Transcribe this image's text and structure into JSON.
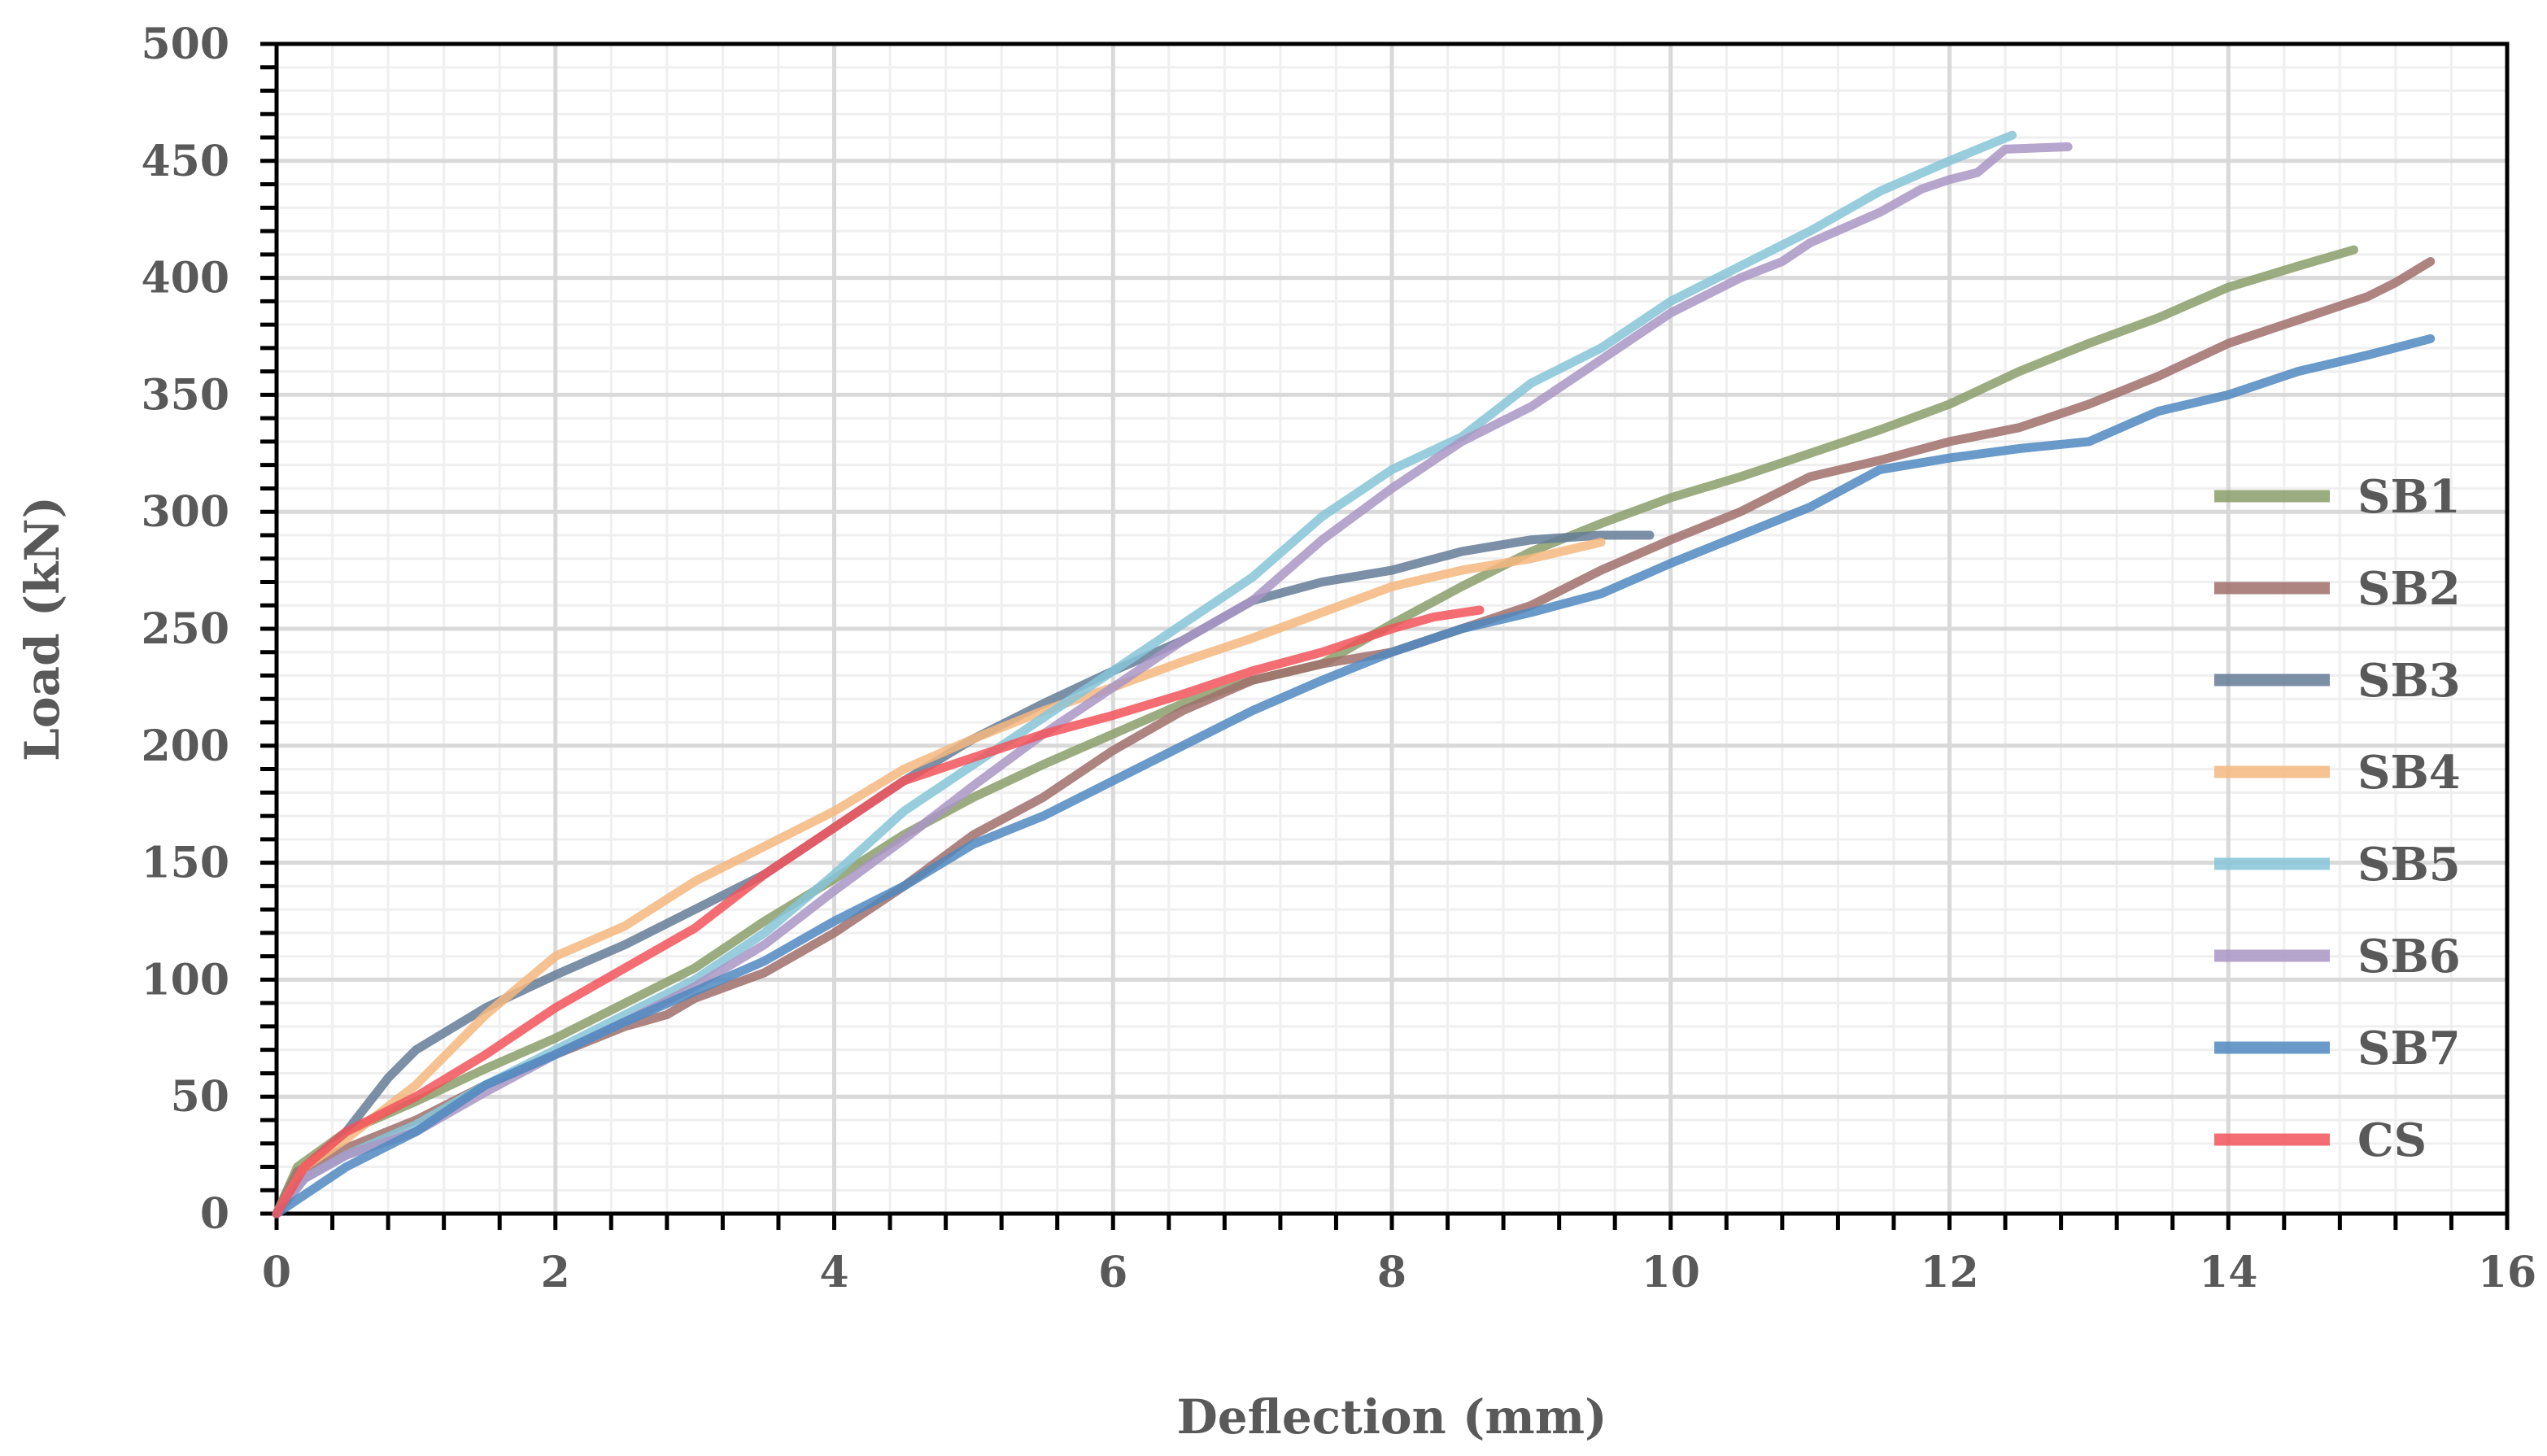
{
  "chart_data": {
    "type": "line",
    "title": "",
    "xlabel": "Deflection (mm)",
    "ylabel": "Load (kN)",
    "xlim": [
      0,
      16
    ],
    "ylim": [
      0,
      500
    ],
    "xticks": [
      0,
      2,
      4,
      6,
      8,
      10,
      12,
      14,
      16
    ],
    "yticks": [
      0,
      50,
      100,
      150,
      200,
      250,
      300,
      350,
      400,
      450,
      500
    ],
    "grid": true,
    "legend_position": "right",
    "series": [
      {
        "name": "SB1",
        "color": "#8a9f6a",
        "opacity": 0.85,
        "points": [
          [
            0,
            0
          ],
          [
            0.15,
            20
          ],
          [
            0.5,
            35
          ],
          [
            1,
            48
          ],
          [
            1.5,
            62
          ],
          [
            2,
            75
          ],
          [
            2.5,
            90
          ],
          [
            3,
            105
          ],
          [
            3.5,
            125
          ],
          [
            4,
            143
          ],
          [
            4.5,
            162
          ],
          [
            5,
            178
          ],
          [
            5.5,
            192
          ],
          [
            6,
            205
          ],
          [
            6.5,
            218
          ],
          [
            7,
            228
          ],
          [
            7.5,
            235
          ],
          [
            8,
            252
          ],
          [
            8.5,
            268
          ],
          [
            9,
            283
          ],
          [
            9.5,
            295
          ],
          [
            10,
            306
          ],
          [
            10.5,
            315
          ],
          [
            11,
            325
          ],
          [
            11.5,
            335
          ],
          [
            12,
            346
          ],
          [
            12.5,
            360
          ],
          [
            13,
            372
          ],
          [
            13.5,
            383
          ],
          [
            14,
            396
          ],
          [
            14.5,
            405
          ],
          [
            14.9,
            412
          ]
        ]
      },
      {
        "name": "SB2",
        "color": "#a06f6b",
        "opacity": 0.85,
        "points": [
          [
            0,
            0
          ],
          [
            0.15,
            18
          ],
          [
            0.5,
            28
          ],
          [
            1,
            40
          ],
          [
            1.5,
            55
          ],
          [
            2,
            68
          ],
          [
            2.5,
            80
          ],
          [
            2.8,
            85
          ],
          [
            3,
            92
          ],
          [
            3.5,
            103
          ],
          [
            4,
            120
          ],
          [
            4.5,
            140
          ],
          [
            5,
            162
          ],
          [
            5.5,
            178
          ],
          [
            6,
            198
          ],
          [
            6.5,
            215
          ],
          [
            7,
            228
          ],
          [
            7.5,
            235
          ],
          [
            8,
            240
          ],
          [
            8.5,
            250
          ],
          [
            9,
            260
          ],
          [
            9.5,
            275
          ],
          [
            10,
            288
          ],
          [
            10.5,
            300
          ],
          [
            11,
            315
          ],
          [
            11.5,
            322
          ],
          [
            12,
            330
          ],
          [
            12.5,
            336
          ],
          [
            13,
            346
          ],
          [
            13.5,
            358
          ],
          [
            14,
            372
          ],
          [
            14.5,
            382
          ],
          [
            15,
            392
          ],
          [
            15.2,
            398
          ],
          [
            15.45,
            407
          ]
        ]
      },
      {
        "name": "SB3",
        "color": "#647b97",
        "opacity": 0.85,
        "points": [
          [
            0,
            0
          ],
          [
            0.2,
            20
          ],
          [
            0.5,
            35
          ],
          [
            0.8,
            58
          ],
          [
            1,
            70
          ],
          [
            1.5,
            88
          ],
          [
            2,
            102
          ],
          [
            2.5,
            115
          ],
          [
            3,
            130
          ],
          [
            3.5,
            145
          ],
          [
            4,
            165
          ],
          [
            4.5,
            185
          ],
          [
            5,
            203
          ],
          [
            5.5,
            218
          ],
          [
            6,
            232
          ],
          [
            6.5,
            245
          ],
          [
            7,
            262
          ],
          [
            7.5,
            270
          ],
          [
            8,
            275
          ],
          [
            8.5,
            283
          ],
          [
            9,
            288
          ],
          [
            9.5,
            290
          ],
          [
            9.85,
            290
          ]
        ]
      },
      {
        "name": "SB4",
        "color": "#f5b77e",
        "opacity": 0.85,
        "points": [
          [
            0,
            0
          ],
          [
            0.2,
            20
          ],
          [
            0.5,
            32
          ],
          [
            1,
            55
          ],
          [
            1.5,
            85
          ],
          [
            2,
            110
          ],
          [
            2.5,
            123
          ],
          [
            3,
            142
          ],
          [
            3.5,
            157
          ],
          [
            4,
            172
          ],
          [
            4.5,
            190
          ],
          [
            5,
            203
          ],
          [
            5.5,
            215
          ],
          [
            6,
            225
          ],
          [
            6.5,
            236
          ],
          [
            7,
            246
          ],
          [
            7.5,
            257
          ],
          [
            8,
            268
          ],
          [
            8.5,
            275
          ],
          [
            9,
            280
          ],
          [
            9.5,
            287
          ]
        ]
      },
      {
        "name": "SB5",
        "color": "#86c4d8",
        "opacity": 0.85,
        "points": [
          [
            0,
            0
          ],
          [
            0.2,
            15
          ],
          [
            0.5,
            25
          ],
          [
            1,
            38
          ],
          [
            1.5,
            55
          ],
          [
            2,
            70
          ],
          [
            2.5,
            85
          ],
          [
            3,
            100
          ],
          [
            3.5,
            120
          ],
          [
            4,
            145
          ],
          [
            4.5,
            172
          ],
          [
            5,
            192
          ],
          [
            5.5,
            212
          ],
          [
            6,
            232
          ],
          [
            6.5,
            252
          ],
          [
            7,
            272
          ],
          [
            7.5,
            298
          ],
          [
            8,
            318
          ],
          [
            8.5,
            332
          ],
          [
            9,
            355
          ],
          [
            9.5,
            370
          ],
          [
            10,
            390
          ],
          [
            10.5,
            405
          ],
          [
            11,
            420
          ],
          [
            11.5,
            437
          ],
          [
            12,
            450
          ],
          [
            12.45,
            461
          ]
        ]
      },
      {
        "name": "SB6",
        "color": "#a995c4",
        "opacity": 0.85,
        "points": [
          [
            0,
            0
          ],
          [
            0.2,
            15
          ],
          [
            0.5,
            25
          ],
          [
            1,
            35
          ],
          [
            1.5,
            52
          ],
          [
            2,
            68
          ],
          [
            2.5,
            82
          ],
          [
            3,
            97
          ],
          [
            3.5,
            115
          ],
          [
            4,
            138
          ],
          [
            4.5,
            160
          ],
          [
            5,
            183
          ],
          [
            5.5,
            205
          ],
          [
            6,
            225
          ],
          [
            6.5,
            245
          ],
          [
            7,
            262
          ],
          [
            7.5,
            288
          ],
          [
            8,
            310
          ],
          [
            8.5,
            330
          ],
          [
            9,
            345
          ],
          [
            9.5,
            365
          ],
          [
            10,
            385
          ],
          [
            10.5,
            400
          ],
          [
            10.8,
            407
          ],
          [
            11,
            415
          ],
          [
            11.5,
            428
          ],
          [
            11.8,
            438
          ],
          [
            12,
            442
          ],
          [
            12.2,
            445
          ],
          [
            12.4,
            455
          ],
          [
            12.85,
            456
          ]
        ]
      },
      {
        "name": "SB7",
        "color": "#4f88c0",
        "opacity": 0.85,
        "points": [
          [
            0,
            0
          ],
          [
            0.3,
            12
          ],
          [
            0.5,
            20
          ],
          [
            1,
            35
          ],
          [
            1.5,
            55
          ],
          [
            2,
            68
          ],
          [
            2.5,
            82
          ],
          [
            3,
            95
          ],
          [
            3.5,
            108
          ],
          [
            4,
            125
          ],
          [
            4.5,
            140
          ],
          [
            5,
            158
          ],
          [
            5.5,
            170
          ],
          [
            6,
            185
          ],
          [
            6.5,
            200
          ],
          [
            7,
            215
          ],
          [
            7.5,
            228
          ],
          [
            8,
            240
          ],
          [
            8.5,
            250
          ],
          [
            9,
            257
          ],
          [
            9.5,
            265
          ],
          [
            10,
            278
          ],
          [
            10.5,
            290
          ],
          [
            11,
            302
          ],
          [
            11.5,
            318
          ],
          [
            12,
            323
          ],
          [
            12.5,
            327
          ],
          [
            13,
            330
          ],
          [
            13.5,
            343
          ],
          [
            14,
            350
          ],
          [
            14.5,
            360
          ],
          [
            15,
            367
          ],
          [
            15.45,
            374
          ]
        ]
      },
      {
        "name": "CS",
        "color": "#f2545b",
        "opacity": 0.85,
        "points": [
          [
            0,
            0
          ],
          [
            0.2,
            20
          ],
          [
            0.5,
            35
          ],
          [
            1,
            50
          ],
          [
            1.5,
            68
          ],
          [
            2,
            88
          ],
          [
            2.5,
            105
          ],
          [
            3,
            122
          ],
          [
            3.5,
            145
          ],
          [
            4,
            165
          ],
          [
            4.5,
            185
          ],
          [
            5,
            195
          ],
          [
            5.5,
            205
          ],
          [
            6,
            213
          ],
          [
            6.5,
            222
          ],
          [
            7,
            232
          ],
          [
            7.5,
            240
          ],
          [
            8,
            250
          ],
          [
            8.3,
            255
          ],
          [
            8.63,
            258
          ]
        ]
      }
    ]
  }
}
